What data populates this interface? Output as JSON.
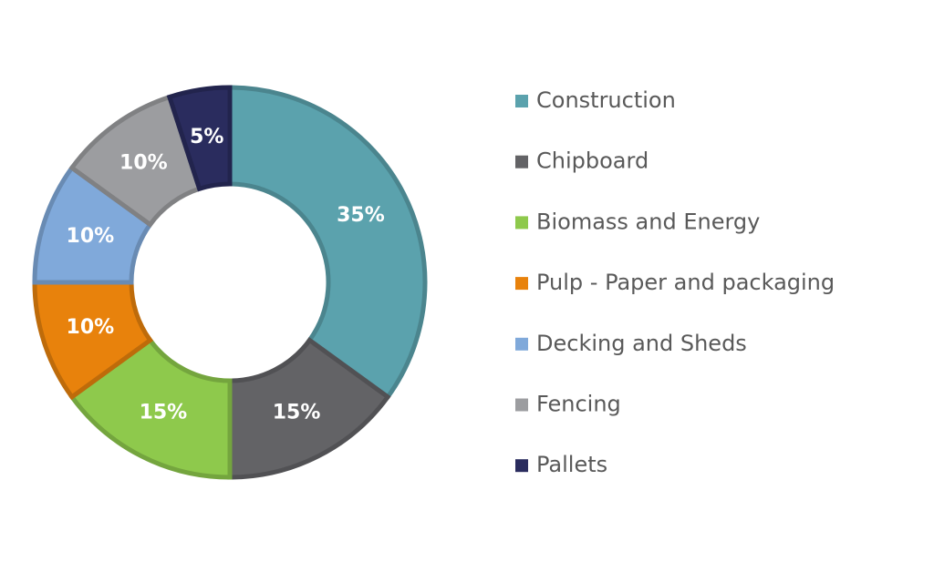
{
  "chart_data": {
    "type": "donut",
    "categories": [
      "Construction",
      "Chipboard",
      "Biomass and Energy",
      "Pulp - Paper and packaging",
      "Decking and Sheds",
      "Fencing",
      "Pallets"
    ],
    "values": [
      35,
      15,
      15,
      10,
      10,
      10,
      5
    ],
    "value_labels": [
      "35%",
      "15%",
      "15%",
      "10%",
      "10%",
      "10%",
      "5%"
    ],
    "colors": [
      "#5ba2ad",
      "#636366",
      "#8ec94c",
      "#e8820c",
      "#80a9da",
      "#9c9da0",
      "#2a2c5e"
    ],
    "legend": "right"
  }
}
